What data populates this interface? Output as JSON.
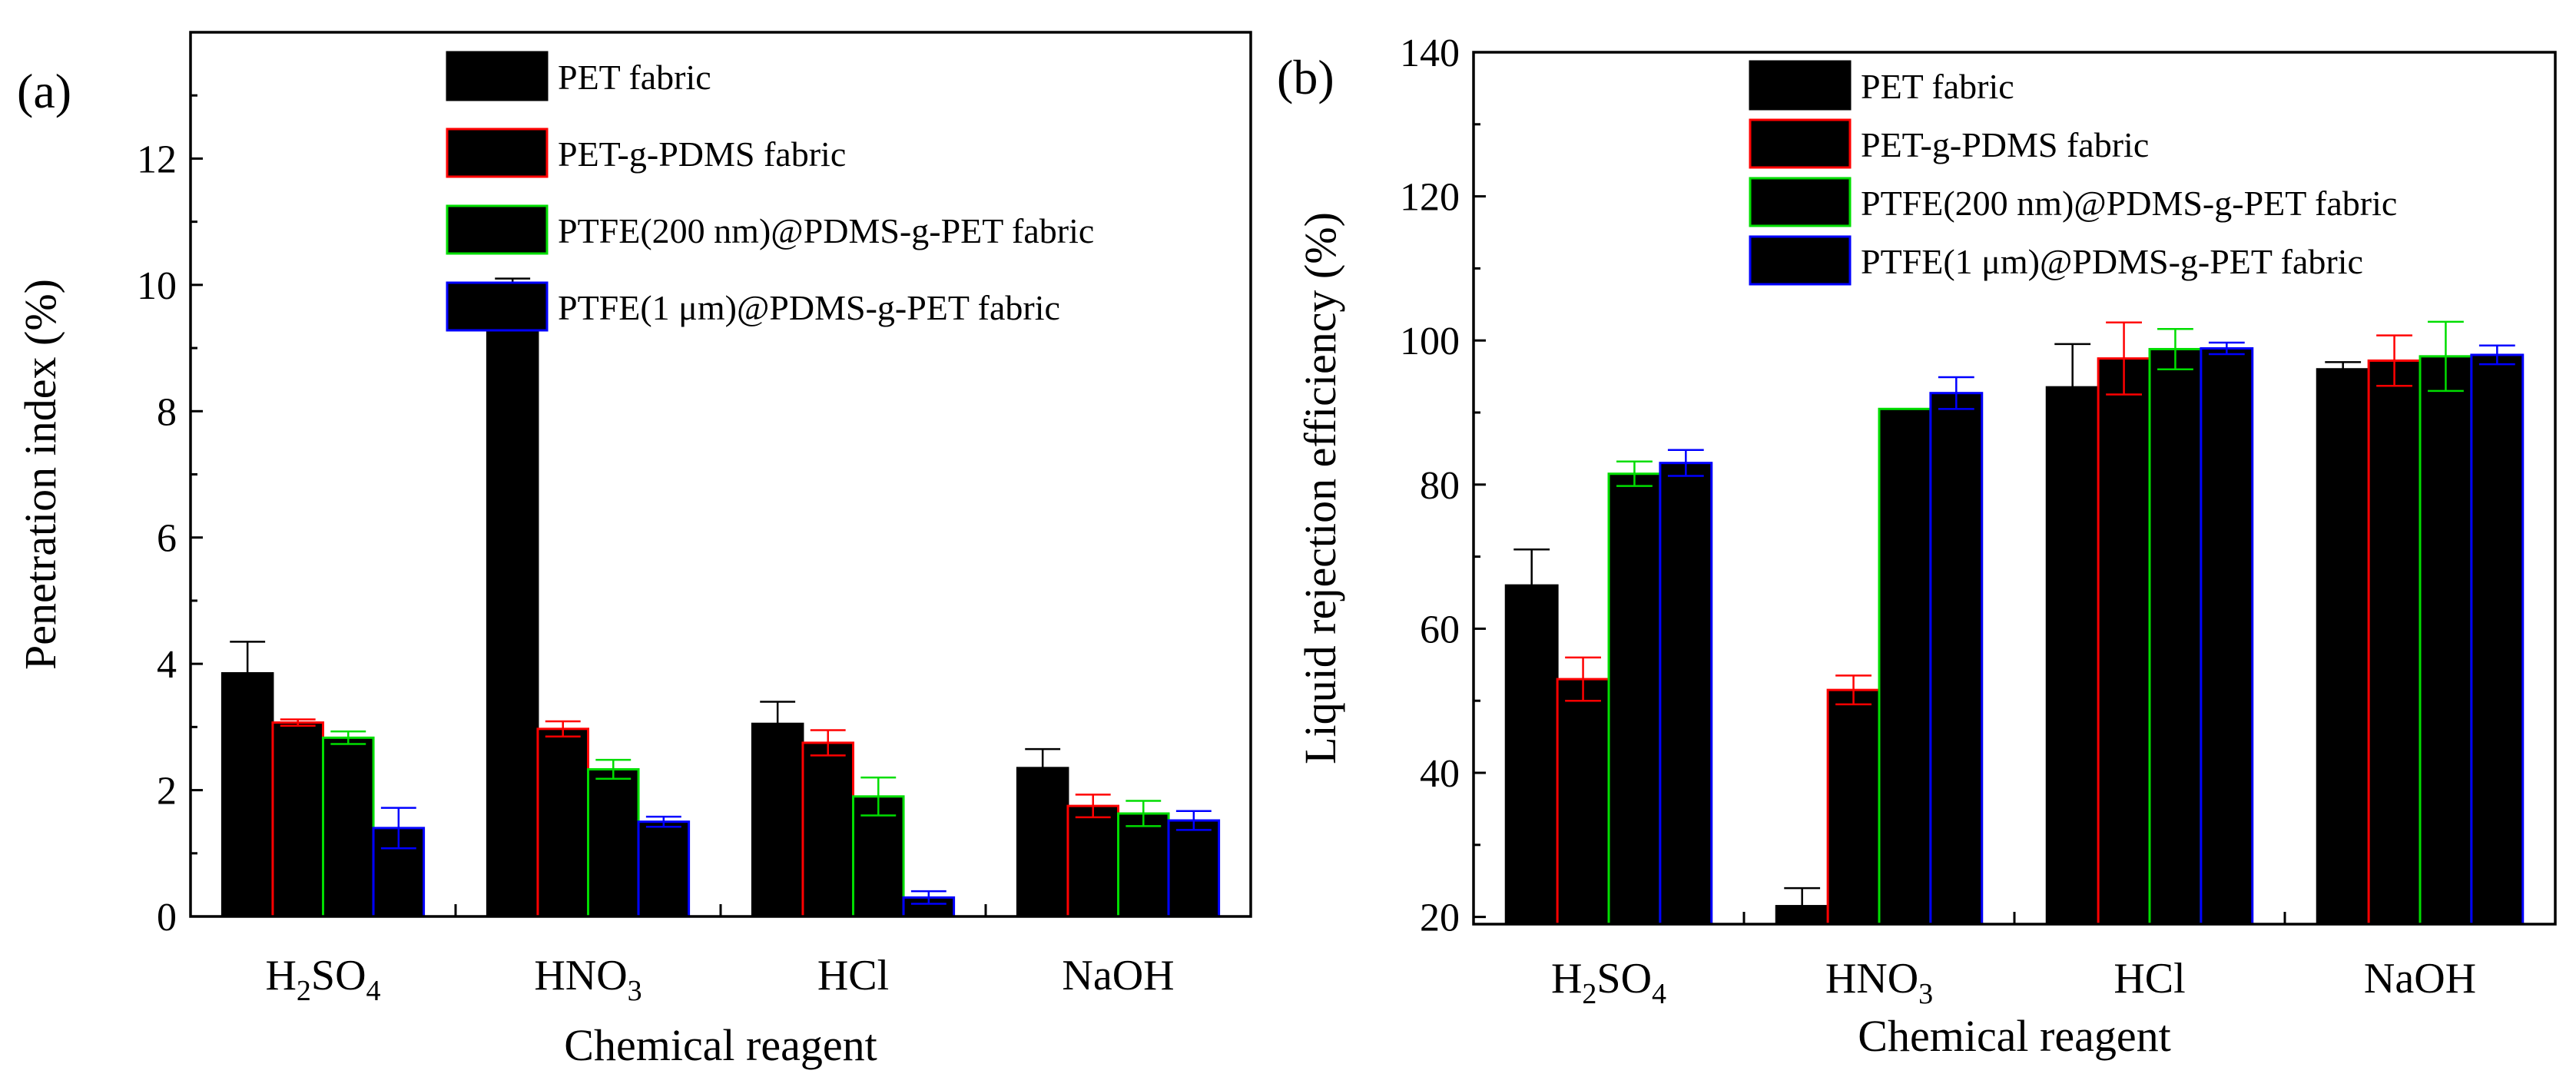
{
  "colors": {
    "PET fabric": "#000000",
    "PET-g-PDMS fabric": "#ff0000",
    "PTFE(200 nm)@PDMS-g-PET fabric": "#00dd00",
    "PTFE(1 μm)@PDMS-g-PET fabric": "#0000ff"
  },
  "chart_data": [
    {
      "panel": "(a)",
      "type": "bar",
      "xlabel": "Chemical reagent",
      "ylabel": "Penetration index (%)",
      "ylim": [
        0,
        14
      ],
      "yticks": [
        "0",
        "2",
        "4",
        "6",
        "8",
        "10",
        "12"
      ],
      "categories": [
        {
          "main": "H",
          "sub1": "2",
          "mid": "SO",
          "sub2": "4"
        },
        {
          "main": "HNO",
          "sub1": "3",
          "mid": "",
          "sub2": ""
        },
        {
          "main": "HCl",
          "sub1": "",
          "mid": "",
          "sub2": ""
        },
        {
          "main": "NaOH",
          "sub1": "",
          "mid": "",
          "sub2": ""
        }
      ],
      "legend_position": "top-right",
      "series": [
        {
          "name": "PET fabric",
          "values": [
            3.85,
            9.9,
            3.05,
            2.35
          ],
          "errors": [
            0.5,
            0.2,
            0.35,
            0.3
          ]
        },
        {
          "name": "PET-g-PDMS fabric",
          "values": [
            3.07,
            2.97,
            2.75,
            1.75
          ],
          "errors": [
            0.05,
            0.12,
            0.2,
            0.18
          ]
        },
        {
          "name": "PTFE(200 nm)@PDMS-g-PET fabric",
          "values": [
            2.83,
            2.33,
            1.9,
            1.63
          ],
          "errors": [
            0.1,
            0.15,
            0.3,
            0.2
          ]
        },
        {
          "name": "PTFE(1 μm)@PDMS-g-PET fabric",
          "values": [
            1.4,
            1.5,
            0.3,
            1.52
          ],
          "errors": [
            0.32,
            0.08,
            0.1,
            0.15
          ]
        }
      ]
    },
    {
      "panel": "(b)",
      "type": "bar",
      "xlabel": "Chemical reagent",
      "ylabel": "Liquid rejection efficiency (%)",
      "ylim": [
        19,
        140
      ],
      "yticks": [
        "20",
        "40",
        "60",
        "80",
        "100",
        "120",
        "140"
      ],
      "categories": [
        {
          "main": "H",
          "sub1": "2",
          "mid": "SO",
          "sub2": "4"
        },
        {
          "main": "HNO",
          "sub1": "3",
          "mid": "",
          "sub2": ""
        },
        {
          "main": "HCl",
          "sub1": "",
          "mid": "",
          "sub2": ""
        },
        {
          "main": "NaOH",
          "sub1": "",
          "mid": "",
          "sub2": ""
        }
      ],
      "legend_position": "top-right",
      "series": [
        {
          "name": "PET fabric",
          "values": [
            66,
            21.5,
            93.5,
            96
          ],
          "errors": [
            5,
            2.5,
            6,
            1
          ]
        },
        {
          "name": "PET-g-PDMS fabric",
          "values": [
            53,
            51.5,
            97.5,
            97.2
          ],
          "errors": [
            3,
            2,
            5,
            3.5
          ]
        },
        {
          "name": "PTFE(200 nm)@PDMS-g-PET fabric",
          "values": [
            81.5,
            90.5,
            98.8,
            97.8
          ],
          "errors": [
            1.7,
            0,
            2.8,
            4.8
          ]
        },
        {
          "name": "PTFE(1 μm)@PDMS-g-PET fabric",
          "values": [
            83,
            92.7,
            98.9,
            98
          ],
          "errors": [
            1.8,
            2.2,
            0.8,
            1.3
          ]
        }
      ]
    }
  ]
}
